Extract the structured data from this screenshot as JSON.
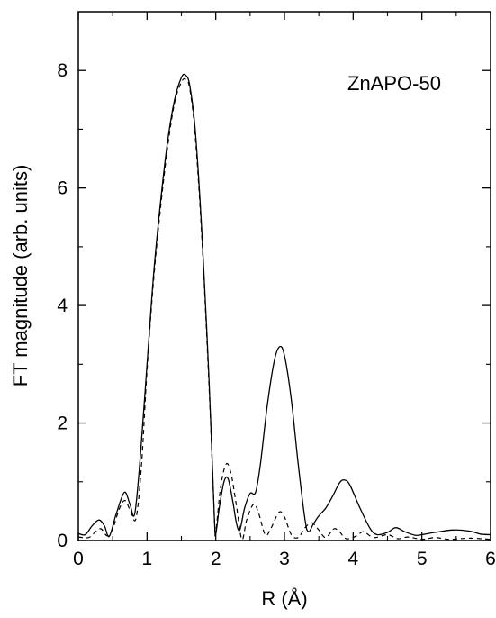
{
  "chart_data": {
    "type": "line",
    "title": "",
    "annotation": "ZnAPO-50",
    "xlabel": "R (Å)",
    "ylabel": "FT magnitude (arb. units)",
    "xlim": [
      0,
      6
    ],
    "ylim": [
      0,
      9
    ],
    "x_ticks": [
      0,
      1,
      2,
      3,
      4,
      5,
      6
    ],
    "y_ticks": [
      0,
      2,
      4,
      6,
      8
    ],
    "grid": false,
    "legend": "none",
    "series": [
      {
        "style": "solid",
        "color": "#000000",
        "points": [
          [
            0.0,
            0.12
          ],
          [
            0.1,
            0.1
          ],
          [
            0.2,
            0.25
          ],
          [
            0.3,
            0.35
          ],
          [
            0.38,
            0.25
          ],
          [
            0.45,
            0.07
          ],
          [
            0.55,
            0.45
          ],
          [
            0.67,
            0.82
          ],
          [
            0.75,
            0.62
          ],
          [
            0.82,
            0.45
          ],
          [
            0.9,
            1.4
          ],
          [
            1.0,
            3.0
          ],
          [
            1.1,
            4.6
          ],
          [
            1.2,
            5.8
          ],
          [
            1.3,
            6.8
          ],
          [
            1.4,
            7.5
          ],
          [
            1.5,
            7.88
          ],
          [
            1.56,
            7.92
          ],
          [
            1.62,
            7.75
          ],
          [
            1.7,
            7.0
          ],
          [
            1.8,
            5.2
          ],
          [
            1.9,
            2.8
          ],
          [
            1.98,
            0.4
          ],
          [
            2.0,
            0.12
          ],
          [
            2.05,
            0.55
          ],
          [
            2.12,
            1.0
          ],
          [
            2.18,
            1.05
          ],
          [
            2.25,
            0.65
          ],
          [
            2.3,
            0.3
          ],
          [
            2.35,
            0.18
          ],
          [
            2.42,
            0.55
          ],
          [
            2.5,
            0.8
          ],
          [
            2.58,
            0.82
          ],
          [
            2.65,
            1.3
          ],
          [
            2.75,
            2.3
          ],
          [
            2.85,
            3.05
          ],
          [
            2.93,
            3.3
          ],
          [
            3.0,
            3.15
          ],
          [
            3.1,
            2.4
          ],
          [
            3.2,
            1.3
          ],
          [
            3.3,
            0.35
          ],
          [
            3.35,
            0.15
          ],
          [
            3.42,
            0.28
          ],
          [
            3.5,
            0.42
          ],
          [
            3.6,
            0.55
          ],
          [
            3.7,
            0.75
          ],
          [
            3.8,
            0.98
          ],
          [
            3.87,
            1.03
          ],
          [
            3.95,
            0.95
          ],
          [
            4.1,
            0.55
          ],
          [
            4.25,
            0.2
          ],
          [
            4.35,
            0.1
          ],
          [
            4.5,
            0.14
          ],
          [
            4.62,
            0.22
          ],
          [
            4.75,
            0.15
          ],
          [
            4.9,
            0.09
          ],
          [
            5.0,
            0.1
          ],
          [
            5.2,
            0.14
          ],
          [
            5.45,
            0.18
          ],
          [
            5.7,
            0.16
          ],
          [
            5.85,
            0.11
          ],
          [
            6.0,
            0.1
          ]
        ]
      },
      {
        "style": "dashed",
        "color": "#000000",
        "points": [
          [
            0.0,
            0.06
          ],
          [
            0.15,
            0.05
          ],
          [
            0.25,
            0.15
          ],
          [
            0.33,
            0.2
          ],
          [
            0.42,
            0.08
          ],
          [
            0.5,
            0.2
          ],
          [
            0.6,
            0.55
          ],
          [
            0.68,
            0.68
          ],
          [
            0.76,
            0.5
          ],
          [
            0.84,
            0.38
          ],
          [
            0.92,
            1.3
          ],
          [
            1.0,
            2.9
          ],
          [
            1.1,
            4.5
          ],
          [
            1.2,
            5.7
          ],
          [
            1.3,
            6.7
          ],
          [
            1.4,
            7.45
          ],
          [
            1.5,
            7.8
          ],
          [
            1.56,
            7.85
          ],
          [
            1.62,
            7.7
          ],
          [
            1.7,
            6.9
          ],
          [
            1.8,
            5.1
          ],
          [
            1.9,
            2.7
          ],
          [
            1.98,
            0.4
          ],
          [
            2.0,
            0.15
          ],
          [
            2.07,
            0.9
          ],
          [
            2.15,
            1.3
          ],
          [
            2.22,
            1.15
          ],
          [
            2.3,
            0.6
          ],
          [
            2.38,
            0.02
          ],
          [
            2.45,
            0.35
          ],
          [
            2.55,
            0.62
          ],
          [
            2.62,
            0.48
          ],
          [
            2.72,
            0.1
          ],
          [
            2.8,
            0.2
          ],
          [
            2.92,
            0.48
          ],
          [
            3.0,
            0.4
          ],
          [
            3.1,
            0.1
          ],
          [
            3.2,
            0.05
          ],
          [
            3.3,
            0.22
          ],
          [
            3.4,
            0.3
          ],
          [
            3.5,
            0.18
          ],
          [
            3.6,
            0.05
          ],
          [
            3.72,
            0.2
          ],
          [
            3.8,
            0.15
          ],
          [
            3.9,
            0.03
          ],
          [
            4.05,
            0.08
          ],
          [
            4.15,
            0.15
          ],
          [
            4.3,
            0.05
          ],
          [
            4.5,
            0.1
          ],
          [
            4.65,
            0.03
          ],
          [
            4.8,
            0.06
          ],
          [
            5.0,
            0.02
          ],
          [
            5.2,
            0.05
          ],
          [
            5.4,
            0.02
          ],
          [
            5.7,
            0.04
          ],
          [
            6.0,
            0.02
          ]
        ]
      }
    ]
  }
}
